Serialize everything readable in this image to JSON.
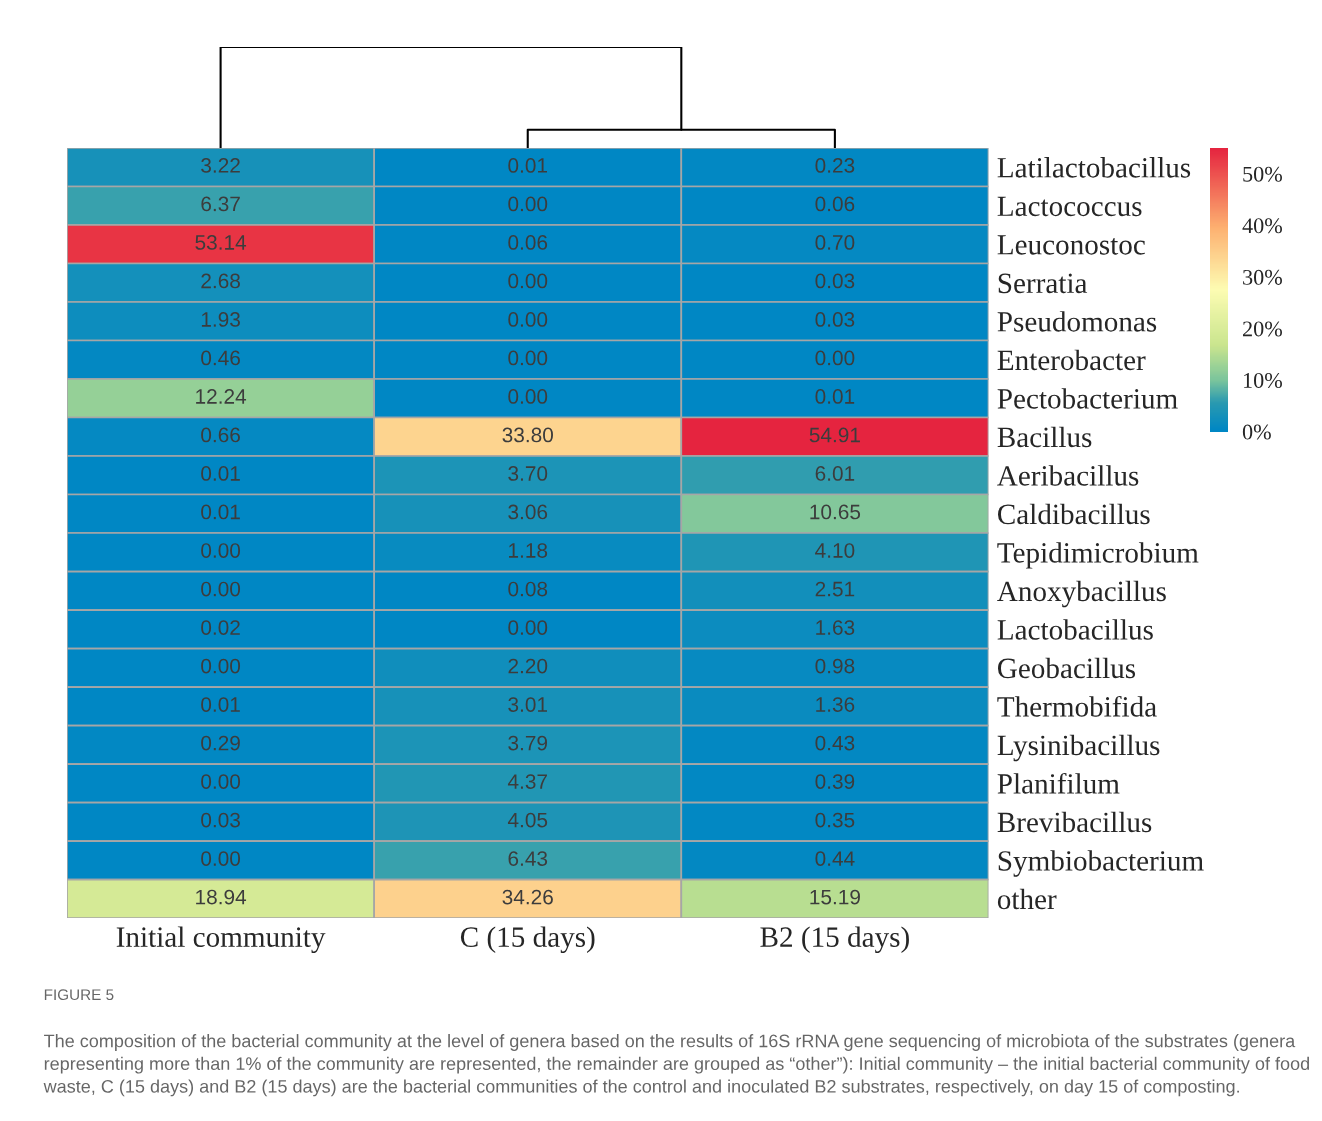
{
  "chart_data": {
    "type": "heatmap",
    "categories": [
      "Initial community",
      "C (15 days)",
      "B2 (15 days)"
    ],
    "y_categories": [
      "Latilactobacillus",
      "Lactococcus",
      "Leuconostoc",
      "Serratia",
      "Pseudomonas",
      "Enterobacter",
      "Pectobacterium",
      "Bacillus",
      "Aeribacillus",
      "Caldibacillus",
      "Tepidimicrobium",
      "Anoxybacillus",
      "Lactobacillus",
      "Geobacillus",
      "Thermobifida",
      "Lysinibacillus",
      "Planifilum",
      "Brevibacillus",
      "Symbiobacterium",
      "other"
    ],
    "cells": [
      [
        3.22,
        0.01,
        0.23
      ],
      [
        6.37,
        0.0,
        0.06
      ],
      [
        53.14,
        0.06,
        0.7
      ],
      [
        2.68,
        0.0,
        0.03
      ],
      [
        1.93,
        0.0,
        0.03
      ],
      [
        0.46,
        0.0,
        0.0
      ],
      [
        12.24,
        0.0,
        0.01
      ],
      [
        0.66,
        33.8,
        54.91
      ],
      [
        0.01,
        3.7,
        6.01
      ],
      [
        0.01,
        3.06,
        10.65
      ],
      [
        0.0,
        1.18,
        4.1
      ],
      [
        0.0,
        0.08,
        2.51
      ],
      [
        0.02,
        0.0,
        1.63
      ],
      [
        0.0,
        2.2,
        0.98
      ],
      [
        0.01,
        3.01,
        1.36
      ],
      [
        0.29,
        3.79,
        0.43
      ],
      [
        0.0,
        4.37,
        0.39
      ],
      [
        0.03,
        4.05,
        0.35
      ],
      [
        0.0,
        6.43,
        0.44
      ],
      [
        18.94,
        34.26,
        15.19
      ]
    ],
    "cell_labels": [
      [
        "3.22",
        "0.01",
        "0.23"
      ],
      [
        "6.37",
        "0.00",
        "0.06"
      ],
      [
        "53.14",
        "0.06",
        "0.70"
      ],
      [
        "2.68",
        "0.00",
        "0.03"
      ],
      [
        "1.93",
        "0.00",
        "0.03"
      ],
      [
        "0.46",
        "0.00",
        "0.00"
      ],
      [
        "12.24",
        "0.00",
        "0.01"
      ],
      [
        "0.66",
        "33.80",
        "54.91"
      ],
      [
        "0.01",
        "3.70",
        "6.01"
      ],
      [
        "0.01",
        "3.06",
        "10.65"
      ],
      [
        "0.00",
        "1.18",
        "4.10"
      ],
      [
        "0.00",
        "0.08",
        "2.51"
      ],
      [
        "0.02",
        "0.00",
        "1.63"
      ],
      [
        "0.00",
        "2.20",
        "0.98"
      ],
      [
        "0.01",
        "3.01",
        "1.36"
      ],
      [
        "0.29",
        "3.79",
        "0.43"
      ],
      [
        "0.00",
        "4.37",
        "0.39"
      ],
      [
        "0.03",
        "4.05",
        "0.35"
      ],
      [
        "0.00",
        "6.43",
        "0.44"
      ],
      [
        "18.94",
        "34.26",
        "15.19"
      ]
    ],
    "clim": [
      0,
      55
    ],
    "cticks": [
      {
        "value": 0,
        "label": "0%"
      },
      {
        "value": 10,
        "label": "10%"
      },
      {
        "value": 20,
        "label": "20%"
      },
      {
        "value": 30,
        "label": "30%"
      },
      {
        "value": 40,
        "label": "40%"
      },
      {
        "value": 50,
        "label": "50%"
      }
    ],
    "annotations": [
      "FIGURE 5",
      "The composition of the bacterial community at the level of genera based on the results of 16S rRNA gene sequencing of microbiota of the substrates (genera representing more than 1% of the community are represented, the remainder are grouped as “other”): Initial community – the initial bacterial community of food waste, C (15 days) and B2 (15 days) are the bacterial communities of the control and inoculated B2 substrates, respectively, on day 15 of composting."
    ]
  }
}
